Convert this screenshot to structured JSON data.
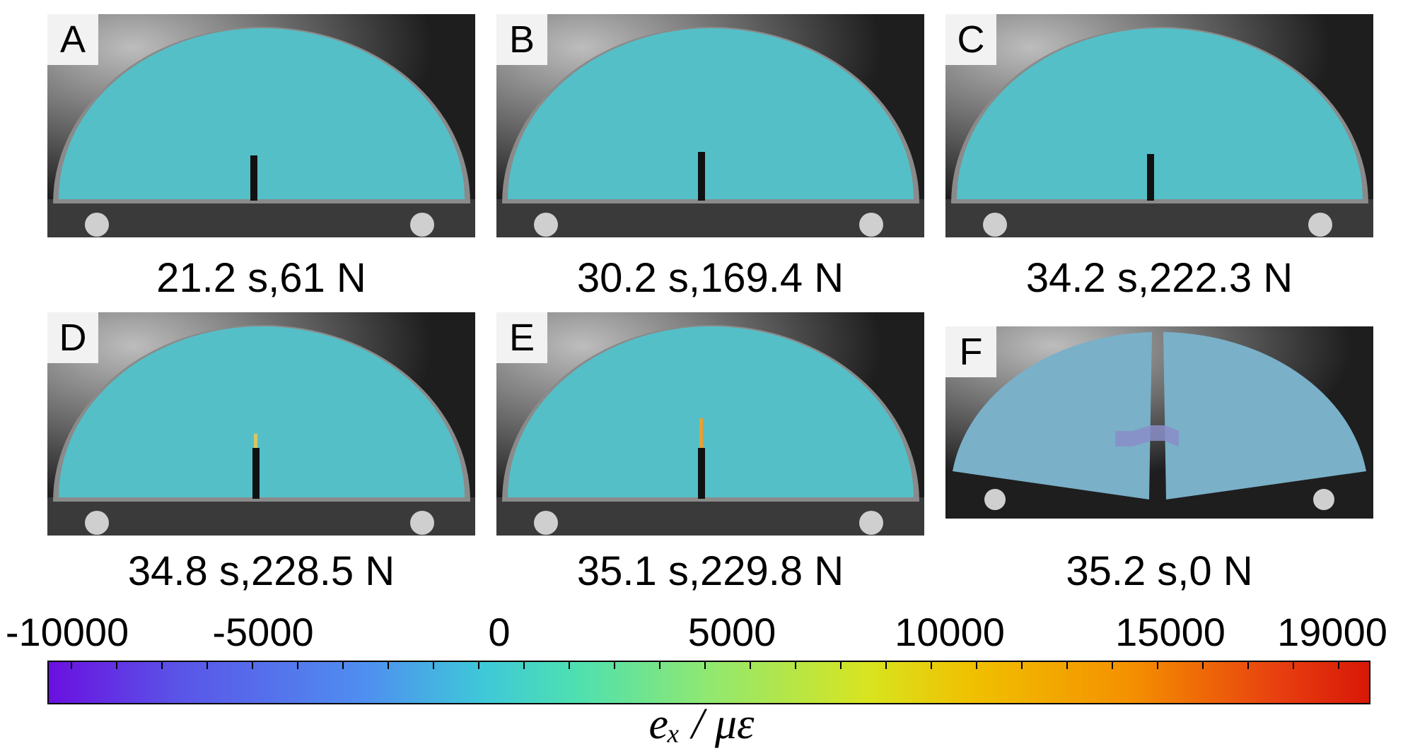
{
  "panels": [
    {
      "letter": "A",
      "caption": "21.2 s,61 N",
      "fractured": false
    },
    {
      "letter": "B",
      "caption": "30.2 s,169.4 N",
      "fractured": false
    },
    {
      "letter": "C",
      "caption": "34.2 s,222.3 N",
      "fractured": false
    },
    {
      "letter": "D",
      "caption": "34.8 s,228.5 N",
      "fractured": false
    },
    {
      "letter": "E",
      "caption": "35.1 s,229.8 N",
      "fractured": false
    },
    {
      "letter": "F",
      "caption": "35.2 s,0 N",
      "fractured": true
    }
  ],
  "colorbar": {
    "ticks": [
      "-10000",
      "-5000",
      "0",
      "5000",
      "10000",
      "15000",
      "19000"
    ],
    "unit": "eₓ / με",
    "min": -10000,
    "max": 19000,
    "colors": [
      "#6a10e0",
      "#4f8ff0",
      "#3ec9d8",
      "#90e870",
      "#d8e420",
      "#f0c000",
      "#f49000",
      "#d81808"
    ]
  }
}
